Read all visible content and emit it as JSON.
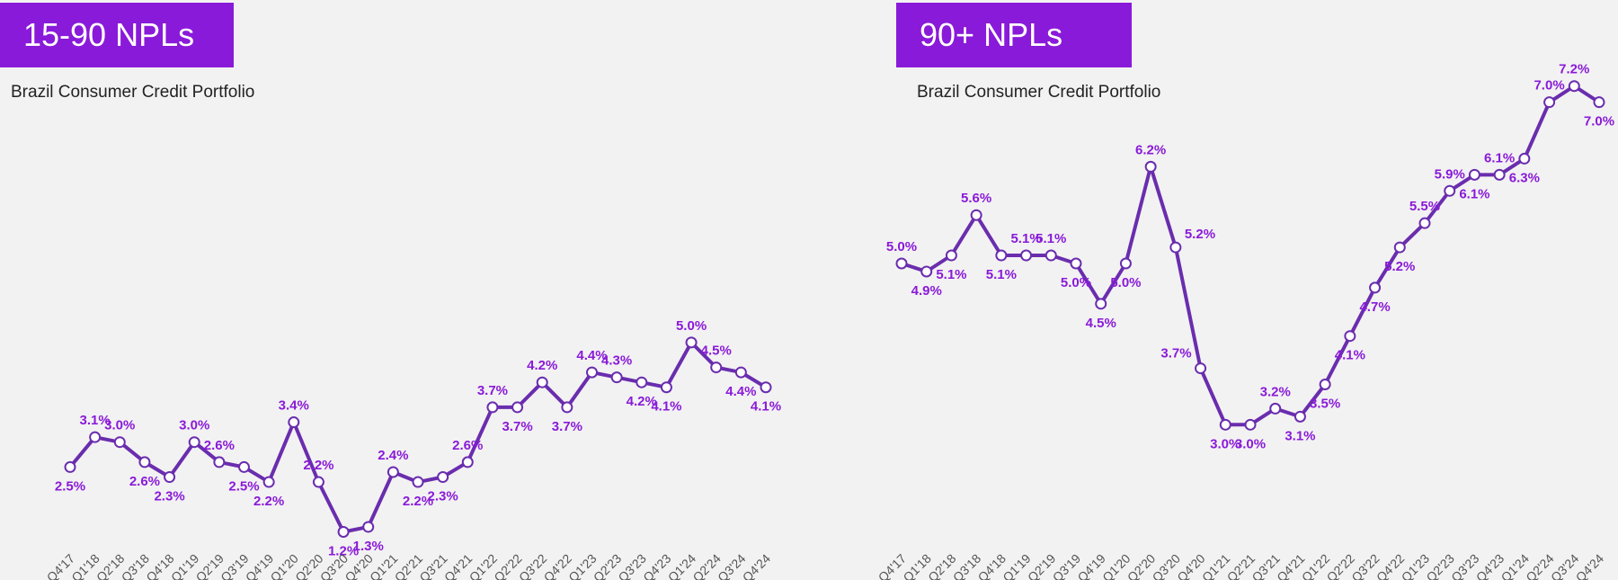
{
  "colors": {
    "accent": "#8a1ad9",
    "line": "#6a2dae",
    "label": "#8a1ad9",
    "tick": "#555555",
    "background": "#f2f2f2"
  },
  "panels": [
    {
      "title": "15-90 NPLs",
      "subtitle": "Brazil Consumer Credit Portfolio"
    },
    {
      "title": "90+ NPLs",
      "subtitle": "Brazil Consumer Credit Portfolio"
    }
  ],
  "chart_data": [
    {
      "type": "line",
      "title": "15-90 NPLs",
      "subtitle": "Brazil Consumer Credit Portfolio",
      "categories": [
        "Q4'17",
        "Q1'18",
        "Q2'18",
        "Q3'18",
        "Q4'18",
        "Q1'19",
        "Q2'19",
        "Q3'19",
        "Q4'19",
        "Q1'20",
        "Q2'20",
        "Q3'20",
        "Q4'20",
        "Q1'21",
        "Q2'21",
        "Q3'21",
        "Q4'21",
        "Q1'22",
        "Q2'22",
        "Q3'22",
        "Q4'22",
        "Q1'23",
        "Q2'23",
        "Q3'23",
        "Q4'23",
        "Q1'24",
        "Q2'24",
        "Q3'24",
        "Q4'24"
      ],
      "series": [
        {
          "values": [
            2.5,
            3.1,
            3.0,
            2.6,
            2.3,
            3.0,
            2.6,
            2.5,
            2.2,
            3.4,
            2.2,
            1.2,
            1.3,
            2.4,
            2.2,
            2.3,
            2.6,
            3.7,
            3.7,
            4.2,
            3.7,
            4.4,
            4.3,
            4.2,
            4.1,
            5.0,
            4.5,
            4.4,
            4.1
          ],
          "labels": [
            "2.5%",
            "3.1%",
            "3.0%",
            "2.6%",
            "2.3%",
            "3.0%",
            "2.6%",
            "2.5%",
            "2.2%",
            "3.4%",
            "2.2%",
            "1.2%",
            "1.3%",
            "2.4%",
            "2.2%",
            "2.3%",
            "2.6%",
            "3.7%",
            "3.7%",
            "4.2%",
            "3.7%",
            "4.4%",
            "4.3%",
            "4.2%",
            "4.1%",
            "5.0%",
            "4.5%",
            "4.4%",
            "4.1%"
          ]
        }
      ],
      "ylim": [
        0,
        7
      ],
      "grid": false,
      "legend": "none",
      "label_side": [
        "below",
        "above",
        "above",
        "below",
        "below",
        "above",
        "above",
        "below",
        "below",
        "above",
        "above",
        "below",
        "below",
        "above",
        "below",
        "below",
        "above",
        "above",
        "below",
        "above",
        "below",
        "above",
        "above",
        "below",
        "below",
        "above",
        "above",
        "below",
        "below"
      ]
    },
    {
      "type": "line",
      "title": "90+ NPLs",
      "subtitle": "Brazil Consumer Credit Portfolio",
      "categories": [
        "Q4'17",
        "Q1'18",
        "Q2'18",
        "Q3'18",
        "Q4'18",
        "Q1'19",
        "Q2'19",
        "Q3'19",
        "Q4'19",
        "Q1'20",
        "Q2'20",
        "Q3'20",
        "Q4'20",
        "Q1'21",
        "Q2'21",
        "Q3'21",
        "Q4'21",
        "Q1'22",
        "Q2'22",
        "Q3'22",
        "Q4'22",
        "Q1'23",
        "Q2'23",
        "Q3'23",
        "Q4'23",
        "Q1'24",
        "Q2'24",
        "Q3'24",
        "Q4'24"
      ],
      "series": [
        {
          "values": [
            5.0,
            4.9,
            5.1,
            5.6,
            5.1,
            5.1,
            5.1,
            5.0,
            4.5,
            5.0,
            6.2,
            5.2,
            3.7,
            3.0,
            3.0,
            3.2,
            3.1,
            3.5,
            4.1,
            4.7,
            5.2,
            5.5,
            5.9,
            6.1,
            6.1,
            6.3,
            7.0,
            7.2,
            7.0
          ],
          "labels": [
            "5.0%",
            "4.9%",
            "5.1%",
            "5.6%",
            "5.1%",
            "5.1%",
            "5.1%",
            "5.0%",
            "4.5%",
            "5.0%",
            "6.2%",
            "5.2%",
            "3.7%",
            "3.0%",
            "3.0%",
            "3.2%",
            "3.1%",
            "3.5%",
            "4.1%",
            "4.7%",
            "5.2%",
            "5.5%",
            "5.9%",
            "6.1%",
            "6.1%",
            "6.3%",
            "7.0%",
            "7.2%",
            "7.0%"
          ]
        }
      ],
      "ylim": [
        2,
        8
      ],
      "grid": false,
      "legend": "none",
      "label_side": [
        "above",
        "below",
        "below",
        "above",
        "below",
        "above",
        "above",
        "below",
        "below",
        "below",
        "above",
        "right",
        "left",
        "below",
        "below",
        "above",
        "below",
        "below",
        "below",
        "below",
        "below",
        "above",
        "above",
        "below",
        "above",
        "below",
        "above",
        "above",
        "below"
      ]
    }
  ]
}
